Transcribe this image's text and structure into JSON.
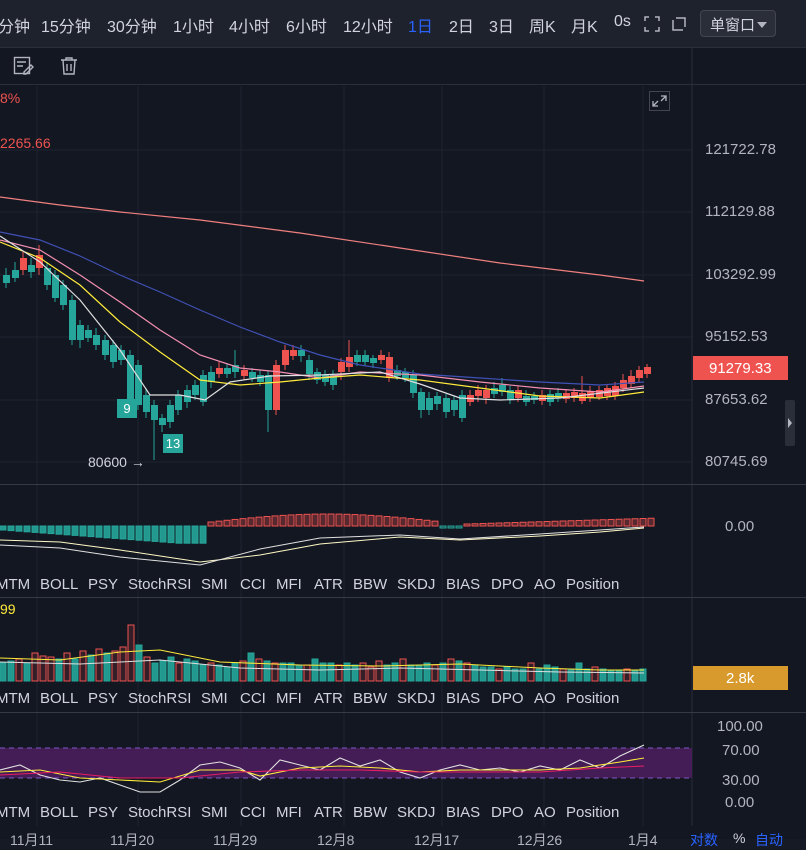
{
  "timeframes": [
    {
      "label": "分钟",
      "active": false
    },
    {
      "label": "15分钟",
      "active": false
    },
    {
      "label": "30分钟",
      "active": false
    },
    {
      "label": "1小时",
      "active": false
    },
    {
      "label": "4小时",
      "active": false
    },
    {
      "label": "6小时",
      "active": false
    },
    {
      "label": "12小时",
      "active": false
    },
    {
      "label": "1日",
      "active": true
    },
    {
      "label": "2日",
      "active": false
    },
    {
      "label": "3日",
      "active": false
    },
    {
      "label": "周K",
      "active": false
    },
    {
      "label": "月K",
      "active": false
    },
    {
      "label": "0s",
      "active": false
    }
  ],
  "window_mode": "单窗口",
  "legend": {
    "pct": "8%",
    "ma_value": "2265.66",
    "vol_value": "99"
  },
  "price_axis": [
    "121722.78",
    "112129.88",
    "103292.99",
    "95152.53",
    "87653.62",
    "80745.69"
  ],
  "last_price": "91279.33",
  "macd_zero": "0.00",
  "volume_tag": "2.8k",
  "rsi_axis": [
    "100.00",
    "70.00",
    "30.00",
    "0.00"
  ],
  "low_marker": "80600",
  "td_labels": [
    "9",
    "13"
  ],
  "indicator_tabs": [
    "MTM",
    "BOLL",
    "PSY",
    "StochRSI",
    "SMI",
    "CCI",
    "MFI",
    "ATR",
    "BBW",
    "SKDJ",
    "BIAS",
    "DPO",
    "AO",
    "Position"
  ],
  "date_axis": [
    "11月11",
    "11月20",
    "11月29",
    "12月8",
    "12月17",
    "12月26",
    "1月4"
  ],
  "bottom_buttons": [
    "对数",
    "%",
    "自动"
  ],
  "colors": {
    "up": "#ef5350",
    "down": "#26a69a",
    "accent": "#2962ff",
    "ma_pink": "#f48fb1",
    "ma_yellow": "#ffeb3b",
    "ma_blue": "#3f51b5",
    "ma_white": "#e0e0e0",
    "ma_salmon": "#f08080",
    "rsi_band": "#4a1d5c"
  }
}
